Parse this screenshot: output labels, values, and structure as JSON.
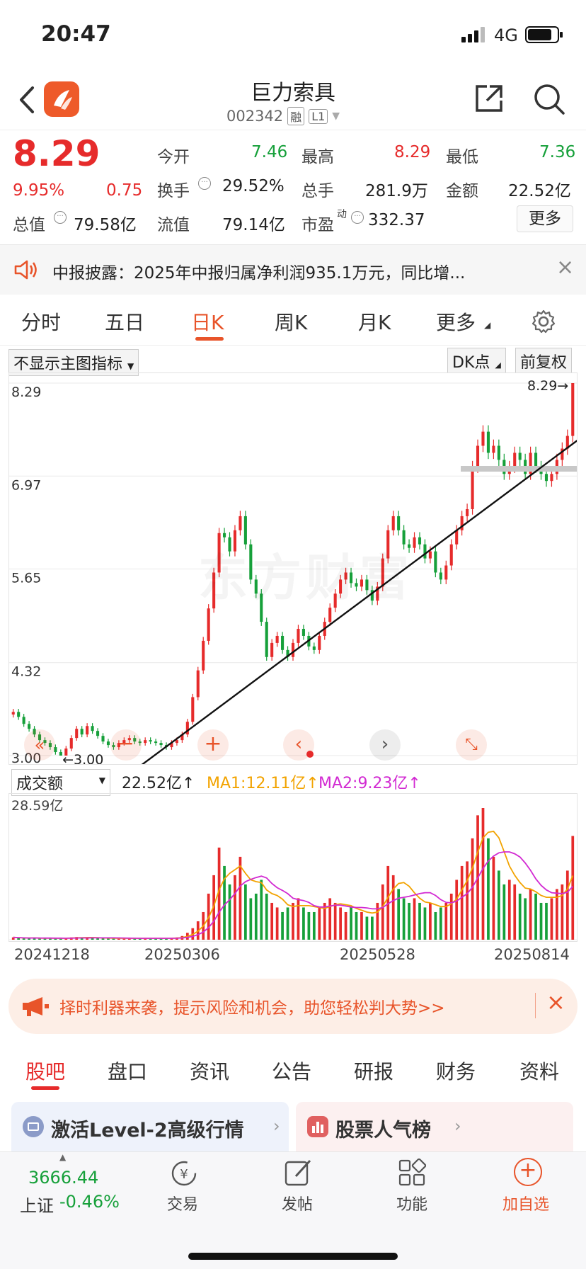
{
  "status": {
    "time": "20:47",
    "network": "4G"
  },
  "header": {
    "title": "巨力索具",
    "code": "002342",
    "badge_margin": "融",
    "badge_level": "L1"
  },
  "quote": {
    "price": "8.29",
    "change_pct": "9.95%",
    "change": "0.75",
    "open_label": "今开",
    "open": "7.46",
    "high_label": "最高",
    "high": "8.29",
    "low_label": "最低",
    "low": "7.36",
    "turnover_label": "换手",
    "turnover": "29.52%",
    "volume_label": "总手",
    "volume": "281.9万",
    "amount_label": "金额",
    "amount": "22.52亿",
    "mktcap_label": "总值",
    "mktcap": "79.58亿",
    "float_label": "流值",
    "float": "79.14亿",
    "pe_label": "市盈",
    "pe_sup": "动",
    "pe": "332.37",
    "more_label": "更多"
  },
  "notice": {
    "text": "中报披露：2025年中报归属净利润935.1万元，同比增..."
  },
  "tabs": [
    {
      "label": "分时"
    },
    {
      "label": "五日"
    },
    {
      "label": "日K"
    },
    {
      "label": "周K"
    },
    {
      "label": "月K"
    },
    {
      "label": "更多"
    }
  ],
  "chart_controls": {
    "indicator": "不显示主图指标",
    "dk": "DK点",
    "adjust": "前复权"
  },
  "watermark": "东方财富",
  "volume_panel": {
    "selector": "成交额",
    "current": "22.52亿↑",
    "ma1": "MA1:12.11亿↑",
    "ma2": "MA2:9.23亿↑",
    "max_label": "28.59亿"
  },
  "colors": {
    "up": "#e62b2b",
    "down": "#16a03a",
    "ma1": "#f2a300",
    "ma2": "#d22ad2",
    "accent": "#e8542a"
  },
  "chart_data": {
    "type": "candlestick",
    "y_ticks": [
      "8.29",
      "6.97",
      "5.65",
      "4.32",
      "3.00"
    ],
    "y_range": [
      3.0,
      8.29
    ],
    "max_marker": "8.29→",
    "min_marker": "←3.00",
    "x_ticks": [
      "20241218",
      "20250306",
      "20250528",
      "20250814"
    ],
    "closes": [
      3.62,
      3.55,
      3.45,
      3.38,
      3.3,
      3.22,
      3.18,
      3.12,
      3.05,
      3.0,
      3.1,
      3.25,
      3.38,
      3.3,
      3.42,
      3.35,
      3.28,
      3.2,
      3.15,
      3.12,
      3.18,
      3.22,
      3.25,
      3.2,
      3.18,
      3.22,
      3.2,
      3.18,
      3.15,
      3.12,
      3.18,
      3.22,
      3.3,
      3.48,
      3.83,
      4.21,
      4.63,
      5.09,
      5.6,
      6.16,
      6.1,
      5.9,
      6.2,
      6.4,
      6.0,
      5.5,
      5.3,
      4.9,
      4.4,
      4.6,
      4.7,
      4.5,
      4.4,
      4.6,
      4.8,
      4.7,
      4.55,
      4.5,
      4.7,
      4.9,
      5.1,
      5.3,
      5.5,
      5.6,
      5.45,
      5.4,
      5.5,
      5.35,
      5.2,
      5.4,
      5.8,
      6.2,
      6.4,
      6.2,
      6.0,
      5.95,
      6.1,
      6.0,
      5.8,
      5.9,
      5.6,
      5.5,
      5.7,
      6.0,
      6.2,
      6.4,
      6.5,
      7.1,
      7.4,
      7.6,
      7.3,
      7.4,
      7.2,
      7.0,
      7.1,
      7.3,
      7.2,
      7.0,
      7.3,
      7.1,
      7.0,
      6.9,
      7.0,
      7.2,
      7.36,
      7.54,
      8.29
    ],
    "amounts_yi": [
      0.5,
      0.4,
      0.3,
      0.3,
      0.4,
      0.3,
      0.3,
      0.3,
      0.3,
      0.3,
      0.4,
      0.5,
      0.6,
      0.4,
      0.5,
      0.4,
      0.3,
      0.3,
      0.3,
      0.3,
      0.3,
      0.3,
      0.3,
      0.3,
      0.3,
      0.3,
      0.3,
      0.3,
      0.3,
      0.3,
      0.4,
      0.5,
      0.8,
      1.5,
      2.5,
      4.0,
      6.0,
      10.0,
      14.0,
      20.0,
      16.0,
      12.0,
      14.0,
      18.0,
      12.0,
      9.0,
      10.0,
      13.0,
      10.0,
      8.0,
      7.0,
      6.0,
      7.0,
      8.0,
      9.0,
      7.0,
      6.0,
      6.0,
      7.0,
      8.0,
      9.0,
      8.0,
      7.0,
      6.0,
      7.0,
      6.0,
      6.0,
      5.0,
      5.0,
      8.0,
      12.0,
      16.0,
      14.0,
      11.0,
      9.0,
      8.0,
      9.0,
      8.0,
      7.0,
      8.0,
      6.0,
      7.0,
      8.0,
      10.0,
      13.0,
      16.0,
      17.0,
      22.0,
      27.0,
      28.59,
      22.0,
      18.0,
      15.0,
      12.0,
      13.0,
      12.0,
      10.0,
      9.0,
      11.0,
      10.0,
      8.0,
      8.0,
      9.0,
      11.0,
      12.0,
      15.0,
      22.52
    ]
  },
  "promo": {
    "text": "择时利器来袭，提示风险和机会，助您轻松判大势>>"
  },
  "sub_tabs": [
    {
      "label": "股吧"
    },
    {
      "label": "盘口"
    },
    {
      "label": "资讯"
    },
    {
      "label": "公告"
    },
    {
      "label": "研报"
    },
    {
      "label": "财务"
    },
    {
      "label": "资料"
    }
  ],
  "cards": {
    "left": "激活Level-2高级行情",
    "right": "股票人气榜"
  },
  "bottom": {
    "index_value": "3666.44",
    "index_name": "上证",
    "index_change": "-0.46%",
    "trade": "交易",
    "post": "发帖",
    "features": "功能",
    "add_watch": "加自选"
  }
}
